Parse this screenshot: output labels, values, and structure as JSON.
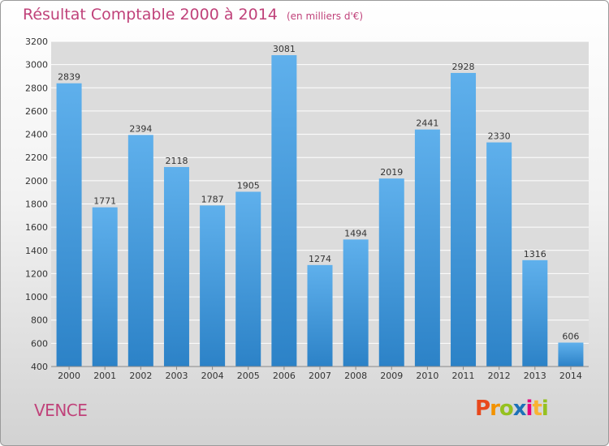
{
  "title": "Résultat Comptable 2000 à 2014",
  "unit_note": "(en milliers d'€)",
  "location": "VENCE",
  "brand": {
    "letters": [
      "P",
      "r",
      "o",
      "x",
      "i",
      "t",
      "i"
    ],
    "colors": [
      "#e8481c",
      "#f39200",
      "#95c11f",
      "#1d71b8",
      "#e6007e",
      "#f9b233",
      "#95c11f"
    ]
  },
  "colors": {
    "bar_top": "#5fb0ec",
    "bar_bottom": "#2c82c7",
    "grid": "#ffffff",
    "plot_bg": "#dcdcdc",
    "label": "#333333"
  },
  "chart_data": {
    "type": "bar",
    "title": "Résultat Comptable 2000 à 2014",
    "xlabel": "",
    "ylabel": "(en milliers d'€)",
    "categories": [
      "2000",
      "2001",
      "2002",
      "2003",
      "2004",
      "2005",
      "2006",
      "2007",
      "2008",
      "2009",
      "2010",
      "2011",
      "2012",
      "2013",
      "2014"
    ],
    "values": [
      2839,
      1771,
      2394,
      2118,
      1787,
      1905,
      3081,
      1274,
      1494,
      2019,
      2441,
      2928,
      2330,
      1316,
      606
    ],
    "ylim": [
      400,
      3200
    ],
    "yticks": [
      400,
      600,
      800,
      1000,
      1200,
      1400,
      1600,
      1800,
      2000,
      2200,
      2400,
      2600,
      2800,
      3000,
      3200
    ],
    "grid": true,
    "data_labels": true
  }
}
